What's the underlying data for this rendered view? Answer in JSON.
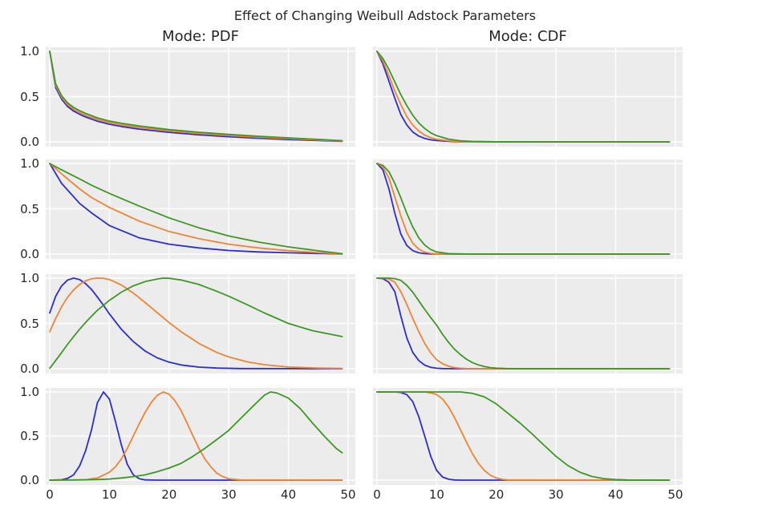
{
  "title": "Effect of Changing Weibull Adstock Parameters",
  "columns": [
    {
      "title": "Mode: PDF"
    },
    {
      "title": "Mode: CDF"
    }
  ],
  "palette": {
    "blue": "#2b2bd9",
    "orange": "#f08430",
    "green": "#3f9724"
  },
  "style": {
    "figure_bg": "#ffffff",
    "plot_bg": "#ececec",
    "grid": "#ffffff",
    "text": "#262626"
  },
  "axes": {
    "x_tick_values": [
      0,
      10,
      20,
      30,
      40,
      50
    ],
    "x_tick_labels": [
      "0",
      "10",
      "20",
      "30",
      "40",
      "50"
    ],
    "y_tick_values": [
      1.0,
      0.5,
      0.0
    ],
    "y_tick_labels": [
      "1.0",
      "0.5",
      "0.0"
    ],
    "x_data_range": [
      0,
      49
    ],
    "y_data_range": [
      0,
      1
    ],
    "grid": true,
    "legend": false
  },
  "chart_data": [
    {
      "type": "line",
      "row": 1,
      "mode": "PDF",
      "series": [
        {
          "name": "series-blue",
          "color_key": "blue",
          "x": [
            0,
            1,
            2,
            3,
            4,
            5,
            6,
            8,
            10,
            12,
            15,
            20,
            25,
            30,
            35,
            40,
            45,
            49
          ],
          "y": [
            1,
            0.6,
            0.47,
            0.39,
            0.34,
            0.305,
            0.275,
            0.228,
            0.195,
            0.17,
            0.141,
            0.105,
            0.078,
            0.057,
            0.04,
            0.026,
            0.014,
            0.006
          ]
        },
        {
          "name": "series-orange",
          "color_key": "orange",
          "x": [
            0,
            1,
            2,
            3,
            4,
            5,
            6,
            8,
            10,
            12,
            15,
            20,
            25,
            30,
            35,
            40,
            45,
            49
          ],
          "y": [
            1,
            0.62,
            0.49,
            0.41,
            0.36,
            0.325,
            0.295,
            0.247,
            0.213,
            0.188,
            0.158,
            0.12,
            0.092,
            0.07,
            0.051,
            0.035,
            0.02,
            0.009
          ]
        },
        {
          "name": "series-green",
          "color_key": "green",
          "x": [
            0,
            1,
            2,
            3,
            4,
            5,
            6,
            8,
            10,
            12,
            15,
            20,
            25,
            30,
            35,
            40,
            45,
            49
          ],
          "y": [
            1,
            0.64,
            0.51,
            0.43,
            0.38,
            0.345,
            0.315,
            0.265,
            0.23,
            0.205,
            0.175,
            0.135,
            0.106,
            0.082,
            0.062,
            0.044,
            0.027,
            0.013
          ]
        }
      ]
    },
    {
      "type": "line",
      "row": 1,
      "mode": "CDF",
      "series": [
        {
          "name": "series-blue",
          "color_key": "blue",
          "x": [
            0,
            1,
            2,
            3,
            4,
            5,
            6,
            7,
            8,
            9,
            10,
            12,
            14,
            16,
            20,
            30,
            40,
            49
          ],
          "y": [
            1,
            0.86,
            0.67,
            0.48,
            0.3,
            0.187,
            0.11,
            0.065,
            0.038,
            0.023,
            0.014,
            0.005,
            0.002,
            0.001,
            0,
            0,
            0,
            0
          ]
        },
        {
          "name": "series-orange",
          "color_key": "orange",
          "x": [
            0,
            1,
            2,
            3,
            4,
            5,
            6,
            7,
            8,
            9,
            10,
            12,
            14,
            16,
            20,
            30,
            40,
            49
          ],
          "y": [
            1,
            0.89,
            0.73,
            0.56,
            0.41,
            0.28,
            0.185,
            0.12,
            0.075,
            0.047,
            0.028,
            0.011,
            0.004,
            0.001,
            0,
            0,
            0,
            0
          ]
        },
        {
          "name": "series-green",
          "color_key": "green",
          "x": [
            0,
            1,
            2,
            3,
            4,
            5,
            6,
            7,
            8,
            9,
            10,
            12,
            14,
            16,
            20,
            30,
            40,
            49
          ],
          "y": [
            1,
            0.92,
            0.8,
            0.66,
            0.52,
            0.4,
            0.295,
            0.21,
            0.148,
            0.1,
            0.068,
            0.03,
            0.012,
            0.005,
            0.001,
            0,
            0,
            0
          ]
        }
      ]
    },
    {
      "type": "line",
      "row": 2,
      "mode": "PDF",
      "series": [
        {
          "name": "series-blue",
          "color_key": "blue",
          "x": [
            0,
            2,
            5,
            7,
            10,
            15,
            20,
            25,
            30,
            35,
            40,
            45,
            49
          ],
          "y": [
            1,
            0.78,
            0.56,
            0.455,
            0.315,
            0.18,
            0.11,
            0.068,
            0.04,
            0.024,
            0.014,
            0.007,
            0.002
          ]
        },
        {
          "name": "series-orange",
          "color_key": "orange",
          "x": [
            0,
            2,
            5,
            7,
            10,
            15,
            20,
            25,
            30,
            35,
            40,
            45,
            49
          ],
          "y": [
            1,
            0.885,
            0.72,
            0.625,
            0.515,
            0.365,
            0.25,
            0.17,
            0.11,
            0.068,
            0.038,
            0.016,
            0.003
          ]
        },
        {
          "name": "series-green",
          "color_key": "green",
          "x": [
            0,
            2,
            5,
            7,
            10,
            15,
            20,
            25,
            30,
            35,
            40,
            45,
            49
          ],
          "y": [
            1,
            0.93,
            0.83,
            0.76,
            0.67,
            0.53,
            0.4,
            0.29,
            0.2,
            0.133,
            0.08,
            0.036,
            0.004
          ]
        }
      ]
    },
    {
      "type": "line",
      "row": 2,
      "mode": "CDF",
      "series": [
        {
          "name": "series-blue",
          "color_key": "blue",
          "x": [
            0,
            1,
            2,
            3,
            4,
            5,
            6,
            7,
            8,
            9,
            10,
            12,
            15,
            20,
            30,
            40,
            49
          ],
          "y": [
            1,
            0.93,
            0.72,
            0.45,
            0.22,
            0.095,
            0.038,
            0.014,
            0.005,
            0.002,
            0.001,
            0,
            0,
            0,
            0,
            0,
            0
          ]
        },
        {
          "name": "series-orange",
          "color_key": "orange",
          "x": [
            0,
            1,
            2,
            3,
            4,
            5,
            6,
            7,
            8,
            9,
            10,
            12,
            15,
            20,
            30,
            40,
            49
          ],
          "y": [
            1,
            0.96,
            0.84,
            0.63,
            0.42,
            0.24,
            0.12,
            0.055,
            0.022,
            0.008,
            0.003,
            0.001,
            0,
            0,
            0,
            0,
            0
          ]
        },
        {
          "name": "series-green",
          "color_key": "green",
          "x": [
            0,
            1,
            2,
            3,
            4,
            5,
            6,
            7,
            8,
            9,
            10,
            12,
            15,
            20,
            30,
            40,
            49
          ],
          "y": [
            1,
            0.98,
            0.91,
            0.78,
            0.62,
            0.45,
            0.3,
            0.18,
            0.1,
            0.05,
            0.024,
            0.005,
            0.001,
            0,
            0,
            0,
            0
          ]
        }
      ]
    },
    {
      "type": "line",
      "row": 3,
      "mode": "PDF",
      "series": [
        {
          "name": "series-blue",
          "color_key": "blue",
          "x": [
            0,
            1,
            2,
            3,
            4,
            5,
            6,
            7,
            8,
            9,
            10,
            12,
            14,
            16,
            18,
            20,
            22,
            25,
            28,
            32,
            40,
            49
          ],
          "y": [
            0.615,
            0.8,
            0.915,
            0.98,
            1.0,
            0.985,
            0.94,
            0.875,
            0.79,
            0.7,
            0.605,
            0.435,
            0.3,
            0.195,
            0.12,
            0.073,
            0.042,
            0.018,
            0.007,
            0.002,
            0.001,
            0
          ]
        },
        {
          "name": "series-orange",
          "color_key": "orange",
          "x": [
            0,
            1,
            2,
            3,
            4,
            5,
            6,
            7,
            8,
            9,
            10,
            12,
            14,
            16,
            18,
            20,
            22,
            25,
            28,
            30,
            33,
            36,
            40,
            45,
            49
          ],
          "y": [
            0.41,
            0.555,
            0.685,
            0.79,
            0.87,
            0.93,
            0.97,
            0.993,
            1.0,
            0.998,
            0.985,
            0.925,
            0.835,
            0.73,
            0.62,
            0.51,
            0.41,
            0.28,
            0.18,
            0.13,
            0.078,
            0.044,
            0.019,
            0.007,
            0.003
          ]
        },
        {
          "name": "series-green",
          "color_key": "green",
          "x": [
            0,
            1,
            2,
            3,
            4,
            5,
            6,
            7,
            8,
            10,
            12,
            14,
            16,
            18,
            19,
            20,
            22,
            25,
            28,
            30,
            33,
            36,
            40,
            44,
            49
          ],
          "y": [
            0.005,
            0.09,
            0.18,
            0.27,
            0.355,
            0.435,
            0.51,
            0.58,
            0.645,
            0.755,
            0.845,
            0.915,
            0.962,
            0.99,
            1.0,
            0.998,
            0.98,
            0.93,
            0.855,
            0.8,
            0.71,
            0.615,
            0.5,
            0.42,
            0.355
          ]
        }
      ]
    },
    {
      "type": "line",
      "row": 3,
      "mode": "CDF",
      "series": [
        {
          "name": "series-blue",
          "color_key": "blue",
          "x": [
            0,
            1,
            2,
            3,
            4,
            5,
            6,
            7,
            8,
            9,
            10,
            11,
            12,
            14,
            49
          ],
          "y": [
            1,
            0.995,
            0.955,
            0.85,
            0.58,
            0.34,
            0.18,
            0.09,
            0.04,
            0.015,
            0.005,
            0.002,
            0.001,
            0,
            0
          ]
        },
        {
          "name": "series-orange",
          "color_key": "orange",
          "x": [
            0,
            1,
            2,
            3,
            4,
            5,
            6,
            7,
            8,
            9,
            10,
            11,
            12,
            13,
            14,
            15,
            16,
            18,
            49
          ],
          "y": [
            1,
            1,
            0.99,
            0.955,
            0.85,
            0.71,
            0.555,
            0.41,
            0.28,
            0.175,
            0.1,
            0.055,
            0.028,
            0.012,
            0.005,
            0.002,
            0.001,
            0,
            0
          ]
        },
        {
          "name": "series-green",
          "color_key": "green",
          "x": [
            0,
            2,
            3,
            4,
            5,
            6,
            7,
            8,
            9,
            10,
            11,
            12,
            13,
            14,
            15,
            16,
            17,
            18,
            19,
            20,
            22,
            24,
            49
          ],
          "y": [
            1,
            1,
            0.995,
            0.975,
            0.92,
            0.845,
            0.75,
            0.655,
            0.565,
            0.48,
            0.38,
            0.29,
            0.215,
            0.155,
            0.105,
            0.068,
            0.042,
            0.024,
            0.012,
            0.006,
            0.001,
            0,
            0
          ]
        }
      ]
    },
    {
      "type": "line",
      "row": 4,
      "mode": "PDF",
      "series": [
        {
          "name": "series-blue",
          "color_key": "blue",
          "x": [
            0,
            2,
            3,
            4,
            5,
            6,
            7,
            8,
            9,
            10,
            11,
            12,
            13,
            14,
            15,
            16,
            18,
            49
          ],
          "y": [
            0,
            0.005,
            0.02,
            0.06,
            0.16,
            0.33,
            0.57,
            0.88,
            1.0,
            0.92,
            0.67,
            0.4,
            0.18,
            0.06,
            0.015,
            0.003,
            0,
            0
          ]
        },
        {
          "name": "series-orange",
          "color_key": "orange",
          "x": [
            0,
            6,
            8,
            10,
            11,
            12,
            13,
            14,
            15,
            16,
            17,
            18,
            19,
            20,
            21,
            22,
            23,
            24,
            25,
            26,
            27,
            28,
            29,
            30,
            32,
            49
          ],
          "y": [
            0,
            0.005,
            0.025,
            0.09,
            0.15,
            0.24,
            0.36,
            0.5,
            0.64,
            0.77,
            0.88,
            0.96,
            1.0,
            0.975,
            0.9,
            0.79,
            0.65,
            0.5,
            0.36,
            0.24,
            0.15,
            0.08,
            0.04,
            0.015,
            0.002,
            0
          ]
        },
        {
          "name": "series-green",
          "color_key": "green",
          "x": [
            0,
            4,
            8,
            10,
            12,
            14,
            16,
            18,
            20,
            22,
            24,
            26,
            28,
            30,
            32,
            34,
            35,
            36,
            37,
            38,
            40,
            42,
            44,
            46,
            48,
            49
          ],
          "y": [
            0,
            0.001,
            0.006,
            0.012,
            0.025,
            0.04,
            0.06,
            0.095,
            0.137,
            0.19,
            0.27,
            0.36,
            0.46,
            0.565,
            0.7,
            0.835,
            0.9,
            0.965,
            1.0,
            0.99,
            0.93,
            0.81,
            0.65,
            0.5,
            0.36,
            0.31
          ]
        }
      ]
    },
    {
      "type": "line",
      "row": 4,
      "mode": "CDF",
      "series": [
        {
          "name": "series-blue",
          "color_key": "blue",
          "x": [
            0,
            3,
            4,
            5,
            6,
            7,
            8,
            9,
            10,
            11,
            12,
            13,
            14,
            49
          ],
          "y": [
            1,
            1,
            0.995,
            0.97,
            0.89,
            0.72,
            0.5,
            0.27,
            0.11,
            0.035,
            0.01,
            0.002,
            0,
            0
          ]
        },
        {
          "name": "series-orange",
          "color_key": "orange",
          "x": [
            0,
            8,
            9,
            10,
            11,
            12,
            13,
            14,
            15,
            16,
            17,
            18,
            19,
            20,
            21,
            22,
            49
          ],
          "y": [
            1,
            1,
            0.99,
            0.97,
            0.92,
            0.83,
            0.71,
            0.57,
            0.43,
            0.3,
            0.19,
            0.11,
            0.055,
            0.025,
            0.009,
            0.002,
            0
          ]
        },
        {
          "name": "series-green",
          "color_key": "green",
          "x": [
            0,
            14,
            16,
            18,
            20,
            22,
            24,
            26,
            28,
            30,
            32,
            34,
            36,
            38,
            40,
            42,
            49
          ],
          "y": [
            1,
            1,
            0.985,
            0.945,
            0.865,
            0.755,
            0.645,
            0.525,
            0.395,
            0.27,
            0.165,
            0.09,
            0.042,
            0.017,
            0.006,
            0.002,
            0
          ]
        }
      ]
    }
  ]
}
